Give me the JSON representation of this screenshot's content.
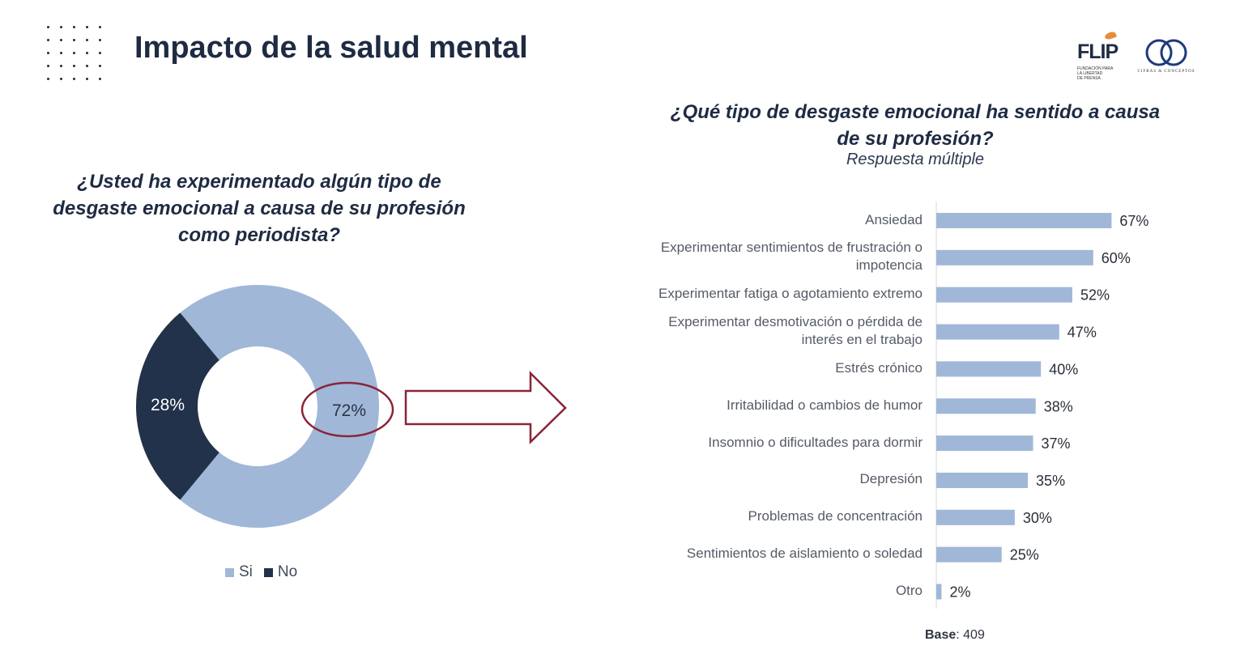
{
  "page": {
    "title": "Impacto de la salud mental"
  },
  "logos": {
    "flip": {
      "mark": "FLIP",
      "subtitle": [
        "FUNDACIÓN PARA",
        "LA LIBERTAD",
        "DE PRENSA"
      ],
      "accent": "#e98b3a"
    },
    "cifras": {
      "mark": "CC",
      "caption": "CIFRAS & CONCEPTOS"
    }
  },
  "left_question": [
    "¿Usted ha experimentado algún tipo de",
    "desgaste emocional a causa de su profesión",
    "como periodista?"
  ],
  "right_question": {
    "title": [
      "¿Qué tipo de desgaste emocional ha sentido a causa",
      "de su profesión?"
    ],
    "subtitle": "Respuesta múltiple"
  },
  "base_note": {
    "label": "Base",
    "value": ": 409"
  },
  "colors": {
    "si": "#a0b7d8",
    "no": "#22324a",
    "bar": "#a0b7d8",
    "highlight": "#8a2438",
    "title": "#1e2b42"
  },
  "chart_data": [
    {
      "type": "pie",
      "variant": "donut",
      "categories": [
        "Si",
        "No"
      ],
      "values": [
        72,
        28
      ],
      "labels": [
        "72%",
        "28%"
      ],
      "legend": {
        "position": "bottom",
        "entries": [
          "Si",
          "No"
        ]
      },
      "highlighted_category": "Si"
    },
    {
      "type": "bar",
      "orientation": "horizontal",
      "categories": [
        [
          "Ansiedad"
        ],
        [
          "Experimentar sentimientos de frustración o",
          "impotencia"
        ],
        [
          "Experimentar fatiga o agotamiento extremo"
        ],
        [
          "Experimentar desmotivación o pérdida de",
          "interés en el trabajo"
        ],
        [
          "Estrés crónico"
        ],
        [
          "Irritabilidad o cambios de humor"
        ],
        [
          "Insomnio o dificultades para dormir"
        ],
        [
          "Depresión"
        ],
        [
          "Problemas de concentración"
        ],
        [
          "Sentimientos de aislamiento o soledad"
        ],
        [
          "Otro"
        ]
      ],
      "values": [
        67,
        60,
        52,
        47,
        40,
        38,
        37,
        35,
        30,
        25,
        2
      ],
      "labels": [
        "67%",
        "60%",
        "52%",
        "47%",
        "40%",
        "38%",
        "37%",
        "35%",
        "30%",
        "25%",
        "2%"
      ],
      "xlim": [
        0,
        100
      ],
      "grid": false
    }
  ]
}
